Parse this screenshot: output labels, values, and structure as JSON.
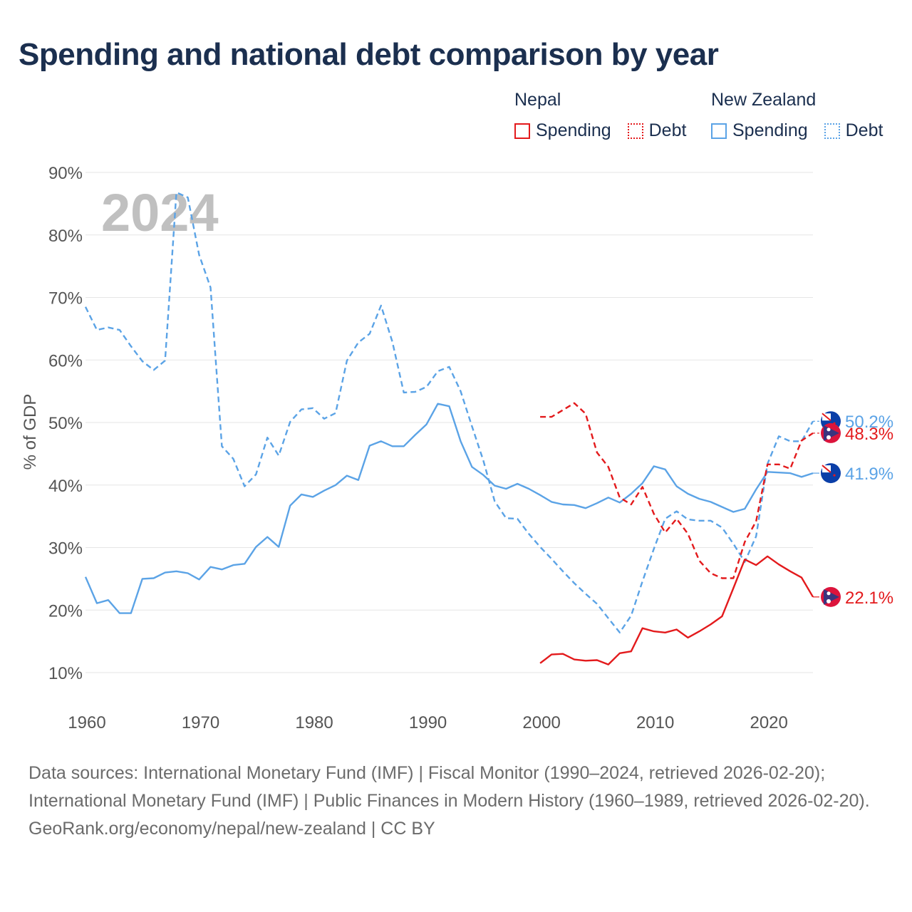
{
  "title": "Spending and national debt comparison by year",
  "legend": {
    "nepal": {
      "label": "Nepal",
      "spending": "Spending",
      "debt": "Debt"
    },
    "nz": {
      "label": "New Zealand",
      "spending": "Spending",
      "debt": "Debt"
    }
  },
  "source": {
    "line1": "Data sources: International Monetary Fund (IMF) | Fiscal Monitor (1990–2024, retrieved 2026-02-20);",
    "line2": "International Monetary Fund (IMF) | Public Finances in Modern History (1960–1989, retrieved 2026-02-20).",
    "line3": "GeoRank.org/economy/nepal/new-zealand | CC BY"
  },
  "colors": {
    "nepal": "#e31a1c",
    "nz": "#5ba3e6",
    "grid": "#e6e6e6",
    "axis_text": "#555555",
    "year_label": "#c0c0c0"
  },
  "chart_data": {
    "type": "line",
    "title": "Spending and national debt comparison by year",
    "ylabel": "% of GDP",
    "xlabel": "",
    "year_label": "2024",
    "xlim": [
      1960,
      2024
    ],
    "ylim": [
      5,
      92
    ],
    "yticks": [
      10,
      20,
      30,
      40,
      50,
      60,
      70,
      80,
      90
    ],
    "ytick_labels": [
      "10%",
      "20%",
      "30%",
      "40%",
      "50%",
      "60%",
      "70%",
      "80%",
      "90%"
    ],
    "xticks": [
      1960,
      1970,
      1980,
      1990,
      2000,
      2010,
      2020
    ],
    "xtick_labels": [
      "1960",
      "1970",
      "1980",
      "1990",
      "2000",
      "2010",
      "2020"
    ],
    "series": [
      {
        "name": "New Zealand Debt",
        "country": "nz",
        "style": "dashed",
        "end_label": "50.2%",
        "x": [
          1960,
          1961,
          1962,
          1963,
          1964,
          1965,
          1966,
          1967,
          1968,
          1969,
          1970,
          1971,
          1972,
          1973,
          1974,
          1975,
          1976,
          1977,
          1978,
          1979,
          1980,
          1981,
          1982,
          1983,
          1984,
          1985,
          1986,
          1987,
          1988,
          1989,
          1990,
          1991,
          1992,
          1993,
          1994,
          1995,
          1996,
          1997,
          1998,
          1999,
          2000,
          2001,
          2002,
          2003,
          2004,
          2005,
          2006,
          2007,
          2008,
          2009,
          2010,
          2011,
          2012,
          2013,
          2014,
          2015,
          2016,
          2017,
          2018,
          2019,
          2020,
          2021,
          2022,
          2023,
          2024
        ],
        "values": [
          68.5,
          64.8,
          65.2,
          64.8,
          62.2,
          59.8,
          58.4,
          59.9,
          86.8,
          86.0,
          76.8,
          71.6,
          46.2,
          44.2,
          39.8,
          41.7,
          47.6,
          44.7,
          50.1,
          52.1,
          52.3,
          50.6,
          51.5,
          59.9,
          62.8,
          64.2,
          68.7,
          62.9,
          54.8,
          54.9,
          55.7,
          58.2,
          58.9,
          55.0,
          49.4,
          43.9,
          37.4,
          34.7,
          34.6,
          32.2,
          30.1,
          28.2,
          26.2,
          24.3,
          22.6,
          21.0,
          18.7,
          16.4,
          19.1,
          24.6,
          29.8,
          34.6,
          35.8,
          34.5,
          34.3,
          34.3,
          33.2,
          30.6,
          27.7,
          31.8,
          43.4,
          47.8,
          47.0,
          47.0,
          50.2
        ]
      },
      {
        "name": "New Zealand Spending",
        "country": "nz",
        "style": "solid",
        "end_label": "41.9%",
        "x": [
          1960,
          1961,
          1962,
          1963,
          1964,
          1965,
          1966,
          1967,
          1968,
          1969,
          1970,
          1971,
          1972,
          1973,
          1974,
          1975,
          1976,
          1977,
          1978,
          1979,
          1980,
          1981,
          1982,
          1983,
          1984,
          1985,
          1986,
          1987,
          1988,
          1989,
          1990,
          1991,
          1992,
          1993,
          1994,
          1995,
          1996,
          1997,
          1998,
          1999,
          2000,
          2001,
          2002,
          2003,
          2004,
          2005,
          2006,
          2007,
          2008,
          2009,
          2010,
          2011,
          2012,
          2013,
          2014,
          2015,
          2016,
          2017,
          2018,
          2019,
          2020,
          2021,
          2022,
          2023,
          2024
        ],
        "values": [
          25.3,
          21.1,
          21.6,
          19.5,
          19.5,
          25.0,
          25.1,
          26.0,
          26.2,
          25.9,
          24.9,
          26.9,
          26.5,
          27.2,
          27.4,
          30.1,
          31.7,
          30.1,
          36.7,
          38.5,
          38.1,
          39.1,
          40.0,
          41.5,
          40.8,
          46.3,
          47.0,
          46.2,
          46.2,
          48.0,
          49.7,
          53.0,
          52.6,
          47.0,
          42.9,
          41.6,
          39.9,
          39.4,
          40.2,
          39.4,
          38.4,
          37.3,
          36.9,
          36.8,
          36.3,
          37.1,
          38.0,
          37.2,
          38.6,
          40.3,
          43.0,
          42.5,
          39.8,
          38.6,
          37.8,
          37.3,
          36.5,
          35.7,
          36.2,
          39.3,
          42.1,
          42.0,
          41.9,
          41.3,
          41.9
        ]
      },
      {
        "name": "Nepal Debt",
        "country": "nepal",
        "style": "dashed",
        "end_label": "48.3%",
        "x": [
          2000,
          2001,
          2002,
          2003,
          2004,
          2005,
          2006,
          2007,
          2008,
          2009,
          2010,
          2011,
          2012,
          2013,
          2014,
          2015,
          2016,
          2017,
          2018,
          2019,
          2020,
          2021,
          2022,
          2023,
          2024
        ],
        "values": [
          50.9,
          50.9,
          52.0,
          53.1,
          51.4,
          45.2,
          42.9,
          38.0,
          36.9,
          39.7,
          35.4,
          32.4,
          34.6,
          32.2,
          27.9,
          25.9,
          25.1,
          25.1,
          30.9,
          34.2,
          43.3,
          43.3,
          42.6,
          47.1,
          48.3
        ]
      },
      {
        "name": "Nepal Spending",
        "country": "nepal",
        "style": "solid",
        "end_label": "22.1%",
        "x": [
          2000,
          2001,
          2002,
          2003,
          2004,
          2005,
          2006,
          2007,
          2008,
          2009,
          2010,
          2011,
          2012,
          2013,
          2014,
          2015,
          2016,
          2017,
          2018,
          2019,
          2020,
          2021,
          2022,
          2023,
          2024
        ],
        "values": [
          11.5,
          12.9,
          13.0,
          12.1,
          11.9,
          12.0,
          11.3,
          13.1,
          13.4,
          17.1,
          16.6,
          16.4,
          16.9,
          15.6,
          16.6,
          17.7,
          19.0,
          23.5,
          28.1,
          27.2,
          28.6,
          27.3,
          26.2,
          25.2,
          22.1
        ]
      }
    ]
  }
}
